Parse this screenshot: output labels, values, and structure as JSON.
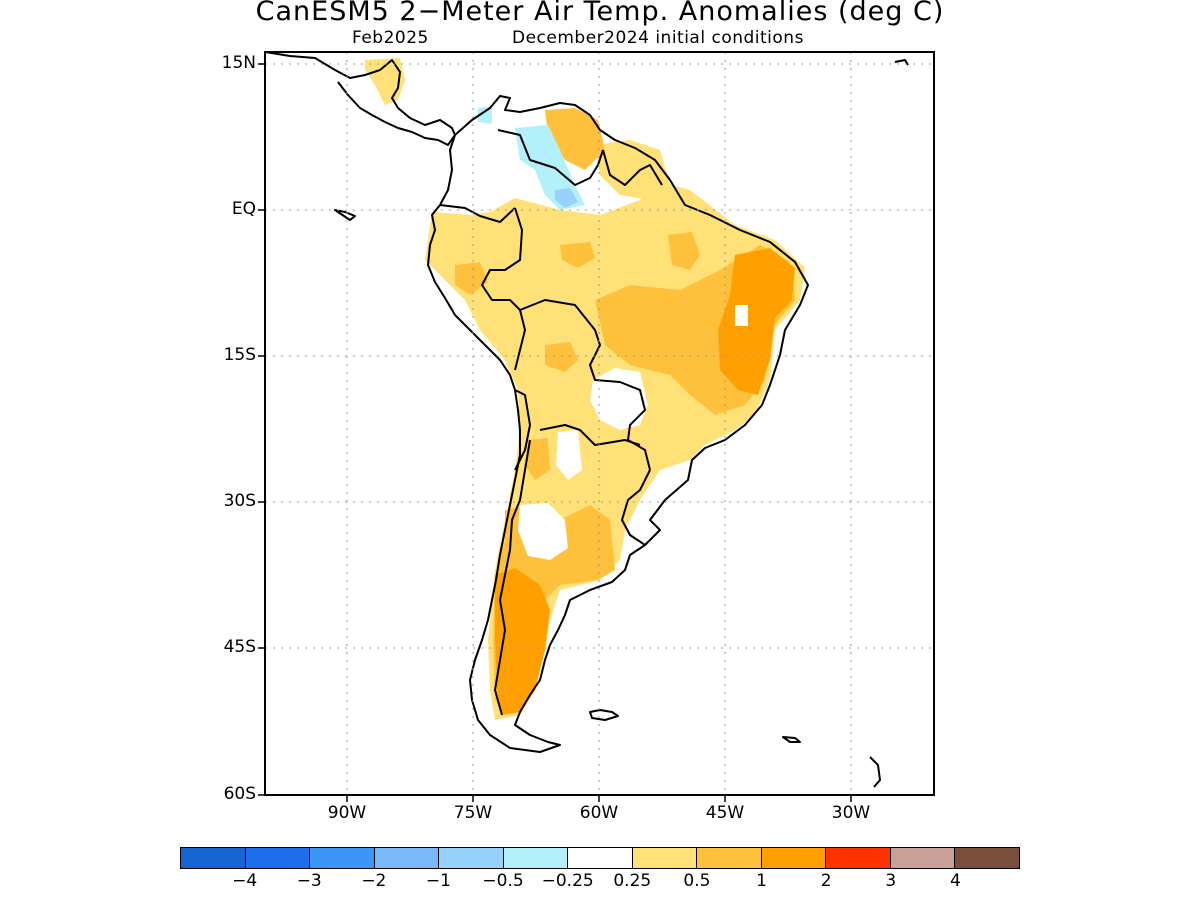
{
  "title": "CanESM5 2−Meter Air Temp. Anomalies (deg C)",
  "subtitle_left": "Feb2025",
  "subtitle_right": "December2024 initial conditions",
  "lat_ticks": [
    "15N",
    "EQ",
    "15S",
    "30S",
    "45S",
    "60S"
  ],
  "lon_ticks": [
    "90W",
    "75W",
    "60W",
    "45W",
    "30W"
  ],
  "map": {
    "region": "South America",
    "extent": {
      "lon_min": -100,
      "lon_max": -20,
      "lat_min": -60,
      "lat_max": 15
    },
    "grid_lines": "dotted",
    "dominant_anomaly": "warm (0.25 to 2 deg C)",
    "cool_area": "northern South America near Venezuela (-0.5 to -0.25)"
  },
  "colorbar": {
    "colors": [
      "#1464d2",
      "#1e6eeb",
      "#3c96f5",
      "#78b9fa",
      "#96d2fa",
      "#b4f0fa",
      "#ffffff",
      "#ffe178",
      "#ffc03c",
      "#ffa000",
      "#ff3200",
      "#c8a096",
      "#7a4e3c"
    ],
    "labels": [
      "−4",
      "−3",
      "−2",
      "−1",
      "−0.5",
      "−0.25",
      "0.25",
      "0.5",
      "1",
      "2",
      "3",
      "4"
    ]
  }
}
